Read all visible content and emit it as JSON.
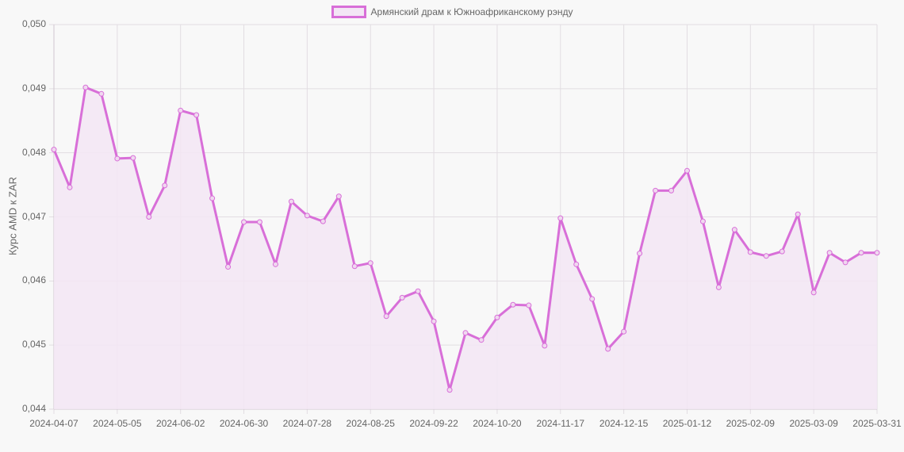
{
  "chart_data": {
    "type": "line",
    "title": "",
    "legend": [
      "Армянский драм к Южноафриканскому рэнду"
    ],
    "legend_position": "top",
    "xlabel": "",
    "ylabel": "Курс AMD к ZAR",
    "ylim": [
      0.044,
      0.05
    ],
    "grid": true,
    "y_ticks": [
      "0,050",
      "0,049",
      "0,048",
      "0,047",
      "0,046",
      "0,045",
      "0,044"
    ],
    "x_ticks": [
      "2024-04-07",
      "2024-05-05",
      "2024-06-02",
      "2024-06-30",
      "2024-07-28",
      "2024-08-25",
      "2024-09-22",
      "2024-10-20",
      "2024-11-17",
      "2024-12-15",
      "2025-01-12",
      "2025-02-09",
      "2025-03-09",
      "2025-03-31"
    ],
    "series": [
      {
        "name": "Армянский драм к Южноафриканскому рэнду",
        "color": "#d86fd8",
        "fill": "#f3e6f5",
        "values": [
          0.04805,
          0.04746,
          0.04902,
          0.04892,
          0.04791,
          0.04792,
          0.047,
          0.04749,
          0.04866,
          0.04859,
          0.04729,
          0.04622,
          0.04692,
          0.04692,
          0.04626,
          0.04724,
          0.04702,
          0.04693,
          0.04732,
          0.04623,
          0.04628,
          0.04545,
          0.04574,
          0.04584,
          0.04537,
          0.0443,
          0.04519,
          0.04508,
          0.04543,
          0.04563,
          0.04562,
          0.04499,
          0.04698,
          0.04626,
          0.04572,
          0.04494,
          0.04521,
          0.04643,
          0.04741,
          0.04741,
          0.04772,
          0.04693,
          0.0459,
          0.0468,
          0.04645,
          0.04639,
          0.04646,
          0.04704,
          0.04582,
          0.04644,
          0.04629,
          0.04644,
          0.04644
        ]
      }
    ]
  }
}
